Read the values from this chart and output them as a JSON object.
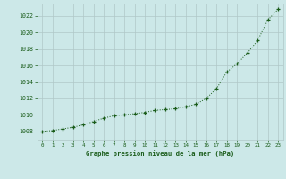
{
  "x": [
    0,
    1,
    2,
    3,
    4,
    5,
    6,
    7,
    8,
    9,
    10,
    11,
    12,
    13,
    14,
    15,
    16,
    17,
    18,
    19,
    20,
    21,
    22,
    23
  ],
  "y": [
    1008.0,
    1008.1,
    1008.3,
    1008.5,
    1008.8,
    1009.2,
    1009.6,
    1009.9,
    1010.0,
    1010.15,
    1010.3,
    1010.55,
    1010.65,
    1010.75,
    1011.0,
    1011.3,
    1012.0,
    1013.2,
    1015.2,
    1016.2,
    1017.5,
    1019.0,
    1021.5,
    1022.8
  ],
  "line_color": "#1a5c1a",
  "marker": "+",
  "marker_color": "#1a5c1a",
  "bg_color": "#cce8e8",
  "grid_color": "#b0c8c8",
  "xlabel": "Graphe pression niveau de la mer (hPa)",
  "xlabel_color": "#1a5c1a",
  "tick_color": "#1a5c1a",
  "ylim_min": 1007.0,
  "ylim_max": 1023.5,
  "yticks": [
    1008,
    1010,
    1012,
    1014,
    1016,
    1018,
    1020,
    1022
  ],
  "xticks": [
    0,
    1,
    2,
    3,
    4,
    5,
    6,
    7,
    8,
    9,
    10,
    11,
    12,
    13,
    14,
    15,
    16,
    17,
    18,
    19,
    20,
    21,
    22,
    23
  ],
  "figsize": [
    3.2,
    2.0
  ],
  "dpi": 100
}
